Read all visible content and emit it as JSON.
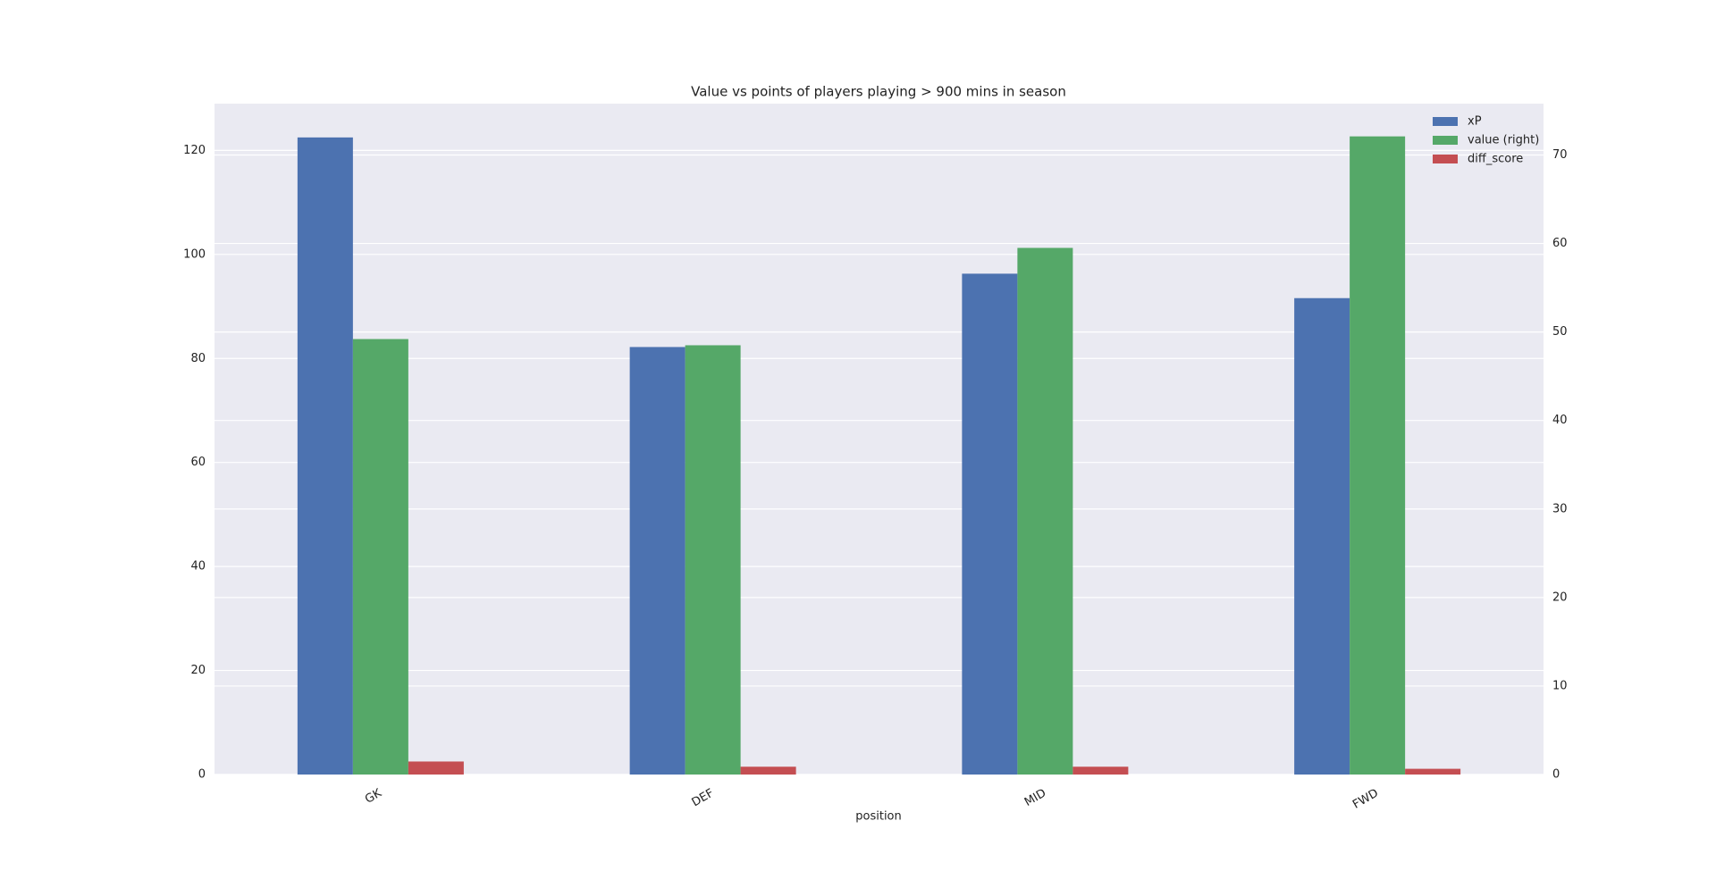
{
  "chart_data": {
    "type": "bar",
    "title": "Value vs points of players playing > 900 mins in season",
    "x_label": "position",
    "categories": [
      "GK",
      "DEF",
      "MID",
      "FWD"
    ],
    "series": [
      {
        "name": "xP",
        "color": "#4c72b0",
        "values": [
          122.5,
          82.2,
          96.3,
          91.6
        ]
      },
      {
        "name": "value (right)",
        "color": "#55a868",
        "axis": "y2",
        "values": [
          49.2,
          48.5,
          59.5,
          72.1
        ]
      },
      {
        "name": "diff_score",
        "color": "#c44e52",
        "values": [
          2.5,
          1.5,
          1.5,
          1.1
        ]
      }
    ],
    "ylim": [
      0,
      129
    ],
    "yticks": [
      0,
      20,
      40,
      60,
      80,
      100,
      120
    ],
    "y2lim": [
      0,
      75.8
    ],
    "y2ticks": [
      0,
      10,
      20,
      30,
      40,
      50,
      60,
      70
    ],
    "grid": true,
    "legend": "upper right"
  }
}
